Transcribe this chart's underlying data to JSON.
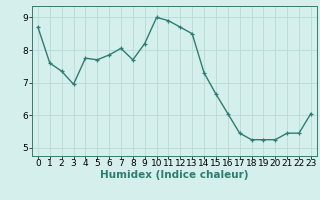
{
  "x": [
    0,
    1,
    2,
    3,
    4,
    5,
    6,
    7,
    8,
    9,
    10,
    11,
    12,
    13,
    14,
    15,
    16,
    17,
    18,
    19,
    20,
    21,
    22,
    23
  ],
  "y": [
    8.7,
    7.6,
    7.35,
    6.95,
    7.75,
    7.7,
    7.85,
    8.05,
    7.7,
    8.2,
    9.0,
    8.9,
    8.7,
    8.5,
    7.3,
    6.65,
    6.05,
    5.45,
    5.25,
    5.25,
    5.25,
    5.45,
    5.45,
    6.05
  ],
  "line_color": "#2e7d6e",
  "marker": "+",
  "marker_size": 3,
  "bg_color": "#d5efed",
  "grid_color": "#b8dbd8",
  "xlabel": "Humidex (Indice chaleur)",
  "xlim": [
    -0.5,
    23.5
  ],
  "ylim": [
    4.75,
    9.35
  ],
  "yticks": [
    5,
    6,
    7,
    8,
    9
  ],
  "xticks": [
    0,
    1,
    2,
    3,
    4,
    5,
    6,
    7,
    8,
    9,
    10,
    11,
    12,
    13,
    14,
    15,
    16,
    17,
    18,
    19,
    20,
    21,
    22,
    23
  ],
  "linewidth": 1.0,
  "xlabel_fontsize": 7.5,
  "tick_fontsize": 6.5,
  "spine_color": "#3a7a70"
}
